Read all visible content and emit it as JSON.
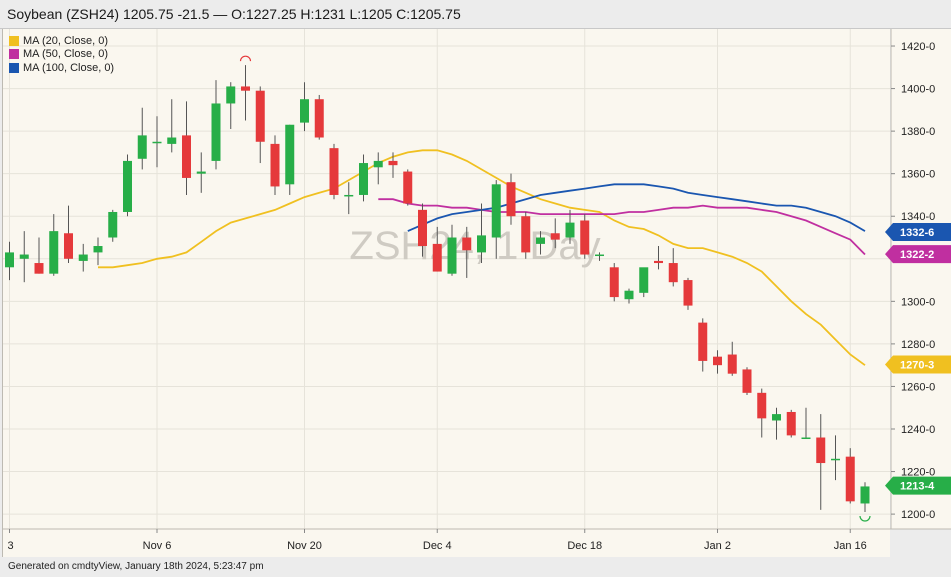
{
  "header": {
    "title": "Soybean (ZSH24) 1205.75 -21.5 — O:1227.25 H:1231 L:1205 C:1205.75"
  },
  "footer": {
    "text": "Generated on cmdtyView, January 18th 2024, 5:23:47 pm"
  },
  "watermark": "ZSH24, 1 Day",
  "legend": [
    {
      "label": "MA (20, Close, 0)",
      "color": "#f0c020"
    },
    {
      "label": "MA (50, Close, 0)",
      "color": "#c02fa0"
    },
    {
      "label": "MA (100, Close, 0)",
      "color": "#1a56b0"
    }
  ],
  "colors": {
    "background": "#faf7ef",
    "up": "#27ae48",
    "down": "#e5393b",
    "grid": "#e6e3da",
    "axis_text": "#222222"
  },
  "chart_data": {
    "type": "candlestick",
    "ylim": [
      1193,
      1428
    ],
    "y_ticks": [
      1200,
      1220,
      1240,
      1260,
      1280,
      1300,
      1320,
      1340,
      1360,
      1380,
      1400,
      1420
    ],
    "y_tick_labels": [
      "1200-0",
      "1220-0",
      "1240-0",
      "1260-0",
      "1280-0",
      "1300-0",
      "1320-0",
      "1340-0",
      "1360-0",
      "1380-0",
      "1400-0",
      "1420-0"
    ],
    "x_tick_labels": [
      {
        "label": "3",
        "bar": 0
      },
      {
        "label": "Nov 6",
        "bar": 10
      },
      {
        "label": "Nov 20",
        "bar": 20
      },
      {
        "label": "Dec 4",
        "bar": 29
      },
      {
        "label": "Dec 18",
        "bar": 39
      },
      {
        "label": "Jan 2",
        "bar": 48
      },
      {
        "label": "Jan 16",
        "bar": 57
      }
    ],
    "candles": [
      {
        "o": 1316,
        "h": 1328,
        "l": 1310,
        "c": 1323
      },
      {
        "o": 1320,
        "h": 1333,
        "l": 1309,
        "c": 1322
      },
      {
        "o": 1318,
        "h": 1330,
        "l": 1313,
        "c": 1313
      },
      {
        "o": 1313,
        "h": 1341,
        "l": 1312,
        "c": 1333
      },
      {
        "o": 1332,
        "h": 1345,
        "l": 1318,
        "c": 1320
      },
      {
        "o": 1319,
        "h": 1327,
        "l": 1314,
        "c": 1322
      },
      {
        "o": 1323,
        "h": 1330,
        "l": 1317,
        "c": 1326
      },
      {
        "o": 1330,
        "h": 1343,
        "l": 1328,
        "c": 1342
      },
      {
        "o": 1342,
        "h": 1369,
        "l": 1340,
        "c": 1366
      },
      {
        "o": 1367,
        "h": 1391,
        "l": 1362,
        "c": 1378
      },
      {
        "o": 1375,
        "h": 1387,
        "l": 1363,
        "c": 1375
      },
      {
        "o": 1374,
        "h": 1395,
        "l": 1370,
        "c": 1377
      },
      {
        "o": 1378,
        "h": 1394,
        "l": 1350,
        "c": 1358
      },
      {
        "o": 1360,
        "h": 1370,
        "l": 1351,
        "c": 1361
      },
      {
        "o": 1366,
        "h": 1404,
        "l": 1362,
        "c": 1393
      },
      {
        "o": 1393,
        "h": 1403,
        "l": 1381,
        "c": 1401
      },
      {
        "o": 1401,
        "h": 1411,
        "l": 1385,
        "c": 1399
      },
      {
        "o": 1399,
        "h": 1401,
        "l": 1365,
        "c": 1375
      },
      {
        "o": 1374,
        "h": 1378,
        "l": 1350,
        "c": 1354
      },
      {
        "o": 1355,
        "h": 1383,
        "l": 1350,
        "c": 1383
      },
      {
        "o": 1384,
        "h": 1403,
        "l": 1380,
        "c": 1395
      },
      {
        "o": 1395,
        "h": 1397,
        "l": 1376,
        "c": 1377
      },
      {
        "o": 1372,
        "h": 1374,
        "l": 1348,
        "c": 1350
      },
      {
        "o": 1350,
        "h": 1356,
        "l": 1341,
        "c": 1350
      },
      {
        "o": 1350,
        "h": 1369,
        "l": 1347,
        "c": 1365
      },
      {
        "o": 1363,
        "h": 1370,
        "l": 1355,
        "c": 1366
      },
      {
        "o": 1366,
        "h": 1370,
        "l": 1358,
        "c": 1364
      },
      {
        "o": 1361,
        "h": 1362,
        "l": 1345,
        "c": 1346
      },
      {
        "o": 1343,
        "h": 1346,
        "l": 1321,
        "c": 1326
      },
      {
        "o": 1327,
        "h": 1335,
        "l": 1314,
        "c": 1314
      },
      {
        "o": 1313,
        "h": 1336,
        "l": 1312,
        "c": 1330
      },
      {
        "o": 1330,
        "h": 1335,
        "l": 1311,
        "c": 1324
      },
      {
        "o": 1323,
        "h": 1346,
        "l": 1318,
        "c": 1331
      },
      {
        "o": 1330,
        "h": 1357,
        "l": 1320,
        "c": 1355
      },
      {
        "o": 1356,
        "h": 1360,
        "l": 1336,
        "c": 1340
      },
      {
        "o": 1340,
        "h": 1342,
        "l": 1320,
        "c": 1323
      },
      {
        "o": 1327,
        "h": 1333,
        "l": 1322,
        "c": 1330
      },
      {
        "o": 1332,
        "h": 1339,
        "l": 1325,
        "c": 1329
      },
      {
        "o": 1330,
        "h": 1343,
        "l": 1327,
        "c": 1337
      },
      {
        "o": 1338,
        "h": 1341,
        "l": 1320,
        "c": 1322
      },
      {
        "o": 1322,
        "h": 1323,
        "l": 1319,
        "c": 1322
      },
      {
        "o": 1316,
        "h": 1318,
        "l": 1300,
        "c": 1302
      },
      {
        "o": 1301,
        "h": 1306,
        "l": 1299,
        "c": 1305
      },
      {
        "o": 1304,
        "h": 1314,
        "l": 1302,
        "c": 1316
      },
      {
        "o": 1319,
        "h": 1326,
        "l": 1315,
        "c": 1318
      },
      {
        "o": 1318,
        "h": 1325,
        "l": 1307,
        "c": 1309
      },
      {
        "o": 1310,
        "h": 1311,
        "l": 1296,
        "c": 1298
      },
      {
        "o": 1290,
        "h": 1292,
        "l": 1267,
        "c": 1272
      },
      {
        "o": 1274,
        "h": 1277,
        "l": 1266,
        "c": 1270
      },
      {
        "o": 1275,
        "h": 1281,
        "l": 1265,
        "c": 1266
      },
      {
        "o": 1268,
        "h": 1269,
        "l": 1256,
        "c": 1257
      },
      {
        "o": 1257,
        "h": 1259,
        "l": 1236,
        "c": 1245
      },
      {
        "o": 1244,
        "h": 1250,
        "l": 1235,
        "c": 1247
      },
      {
        "o": 1248,
        "h": 1249,
        "l": 1236,
        "c": 1237
      },
      {
        "o": 1236,
        "h": 1250,
        "l": 1236,
        "c": 1236
      },
      {
        "o": 1236,
        "h": 1247,
        "l": 1202,
        "c": 1224
      },
      {
        "o": 1226,
        "h": 1237,
        "l": 1216,
        "c": 1226
      },
      {
        "o": 1227,
        "h": 1231,
        "l": 1205,
        "c": 1206
      },
      {
        "o": 1205,
        "h": 1215,
        "l": 1201,
        "c": 1213
      }
    ],
    "ma20": [
      1316,
      1316,
      1317,
      1318,
      1320,
      1321,
      1323,
      1328,
      1333,
      1337,
      1339,
      1341,
      1343,
      1346,
      1349,
      1351,
      1353,
      1357,
      1361,
      1365,
      1368,
      1370,
      1371,
      1371,
      1369,
      1366,
      1362,
      1358,
      1354,
      1351,
      1348,
      1346,
      1344,
      1343,
      1342,
      1338,
      1335,
      1334,
      1331,
      1327,
      1325,
      1325,
      1323,
      1321,
      1318,
      1314,
      1307,
      1300,
      1294,
      1289,
      1282,
      1275,
      1270
    ],
    "ma50": [
      1348,
      1348,
      1346,
      1345,
      1345,
      1344,
      1344,
      1343,
      1342,
      1342,
      1342,
      1341,
      1341,
      1341,
      1341,
      1341,
      1341,
      1342,
      1342,
      1343,
      1344,
      1344,
      1345,
      1344,
      1344,
      1344,
      1343,
      1342,
      1340,
      1338,
      1335,
      1332,
      1329,
      1322
    ],
    "ma100": [
      1333,
      1336,
      1339,
      1341,
      1342,
      1343,
      1344,
      1346,
      1348,
      1350,
      1351,
      1352,
      1353,
      1354,
      1355,
      1355,
      1355,
      1354,
      1353,
      1351,
      1350,
      1349,
      1348,
      1347,
      1346,
      1345,
      1345,
      1344,
      1342,
      1340,
      1337,
      1333
    ],
    "last_values": [
      {
        "label": "1332-6",
        "value": 1332.6,
        "color": "#1a56b0"
      },
      {
        "label": "1322-2",
        "value": 1322.2,
        "color": "#c02fa0"
      },
      {
        "label": "1270-3",
        "value": 1270.3,
        "color": "#f0c020"
      },
      {
        "label": "1213-4",
        "value": 1213.4,
        "color": "#27ae48"
      }
    ],
    "pivot_high_bar": 16,
    "pivot_low_bar": 58,
    "grid": true
  }
}
